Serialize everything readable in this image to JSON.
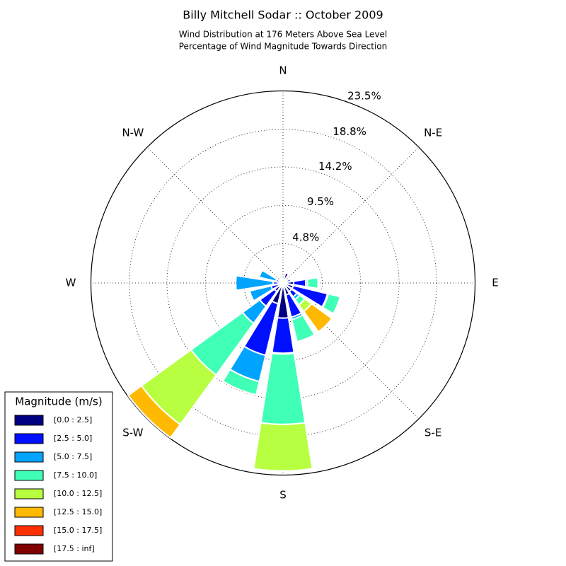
{
  "chart_data": {
    "type": "windrose",
    "title": "Billy Mitchell Sodar :: October 2009",
    "subtitle": [
      "Wind Distribution at 176 Meters Above Sea Level",
      "Percentage of Wind Magnitude Towards Direction"
    ],
    "categories": [
      "N",
      null,
      "N-E",
      null,
      "E",
      null,
      "S-E",
      null,
      "S",
      null,
      "S-W",
      null,
      "W",
      null,
      "N-W",
      null
    ],
    "rlim": [
      0,
      23.5
    ],
    "rticks": [
      {
        "value": 4.8,
        "label": "4.8%"
      },
      {
        "value": 9.5,
        "label": "9.5%"
      },
      {
        "value": 14.2,
        "label": "14.2%"
      },
      {
        "value": 18.8,
        "label": "18.8%"
      },
      {
        "value": 23.5,
        "label": "23.5%"
      }
    ],
    "grid": true,
    "legend_title": "Magnitude (m/s)",
    "legend_position": "lower left",
    "series": [
      {
        "name": "[0.0 : 2.5]",
        "color": "#000080",
        "values": [
          0.4,
          1.3,
          0.6,
          0.5,
          1.3,
          1.3,
          1.3,
          1.5,
          4.3,
          2.6,
          1.3,
          0.5,
          0.4,
          0.3,
          0.5,
          0.3
        ]
      },
      {
        "name": "[2.5 : 5.0]",
        "color": "#0010ff",
        "values": [
          0,
          0,
          0,
          0.5,
          1.5,
          4.3,
          0.8,
          2.8,
          4.3,
          6.5,
          2.2,
          1.0,
          0.8,
          0.6,
          0,
          0
        ]
      },
      {
        "name": "[5.0 : 7.5]",
        "color": "#00a4ff",
        "values": [
          0,
          0,
          0,
          0,
          0.2,
          0.1,
          0.4,
          0.3,
          0.1,
          3.3,
          2.6,
          2.7,
          4.6,
          2.1,
          0,
          0
        ]
      },
      {
        "name": "[7.5 : 10.0]",
        "color": "#40ffb7",
        "values": [
          0,
          0,
          0,
          0,
          1.3,
          1.5,
          0.8,
          2.8,
          8.6,
          1.7,
          7.8,
          0,
          0,
          0,
          0,
          0
        ]
      },
      {
        "name": "[10.0 : 12.5]",
        "color": "#b7ff40",
        "values": [
          0,
          0,
          0,
          0,
          0,
          0,
          1.0,
          0,
          5.7,
          0,
          7.5,
          0,
          0,
          0,
          0,
          0
        ]
      },
      {
        "name": "[12.5 : 15.0]",
        "color": "#ffb900",
        "values": [
          0,
          0,
          0,
          0,
          0,
          0,
          3.1,
          0,
          0,
          0,
          2.0,
          0,
          0,
          0,
          0,
          0
        ]
      },
      {
        "name": "[15.0 : 17.5]",
        "color": "#ff3000",
        "values": [
          0,
          0,
          0,
          0,
          0,
          0,
          0,
          0,
          0,
          0,
          0,
          0,
          0,
          0,
          0,
          0
        ]
      },
      {
        "name": "[17.5 : inf]",
        "color": "#800000",
        "values": [
          0,
          0,
          0,
          0,
          0,
          0,
          0,
          0,
          0,
          0,
          0,
          0,
          0,
          0,
          0,
          0
        ]
      }
    ]
  }
}
